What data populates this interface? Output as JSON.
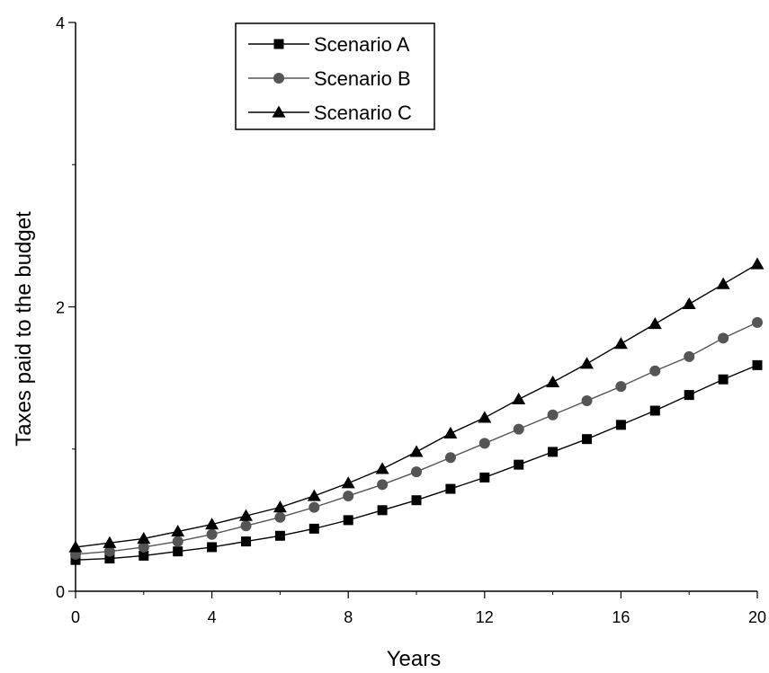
{
  "chart_data": {
    "type": "line",
    "title": "",
    "xlabel": "Years",
    "ylabel": "Taxes paid to the budget",
    "xlim": [
      0,
      20
    ],
    "ylim": [
      0,
      4
    ],
    "xticks": [
      0,
      4,
      8,
      12,
      16,
      20
    ],
    "xtick_labels": [
      "0",
      "4",
      "8",
      "12",
      "16",
      "20"
    ],
    "yticks": [
      0,
      2,
      4
    ],
    "ytick_labels": [
      "0",
      "2",
      "4"
    ],
    "grid": false,
    "legend_position": "top-left",
    "x": [
      0,
      1,
      2,
      3,
      4,
      5,
      6,
      7,
      8,
      9,
      10,
      11,
      12,
      13,
      14,
      15,
      16,
      17,
      18,
      19,
      20
    ],
    "series": [
      {
        "name": "Scenario A",
        "marker": "square",
        "color": "#000000",
        "values": [
          0.22,
          0.23,
          0.25,
          0.28,
          0.31,
          0.35,
          0.39,
          0.44,
          0.5,
          0.57,
          0.64,
          0.72,
          0.8,
          0.89,
          0.98,
          1.07,
          1.17,
          1.27,
          1.38,
          1.49,
          1.59
        ]
      },
      {
        "name": "Scenario B",
        "marker": "circle",
        "color": "#555555",
        "values": [
          0.26,
          0.28,
          0.31,
          0.35,
          0.4,
          0.46,
          0.52,
          0.59,
          0.67,
          0.75,
          0.84,
          0.94,
          1.04,
          1.14,
          1.24,
          1.34,
          1.44,
          1.55,
          1.65,
          1.78,
          1.89
        ]
      },
      {
        "name": "Scenario C",
        "marker": "triangle",
        "color": "#000000",
        "values": [
          0.31,
          0.34,
          0.37,
          0.42,
          0.47,
          0.53,
          0.59,
          0.67,
          0.76,
          0.86,
          0.98,
          1.11,
          1.22,
          1.35,
          1.47,
          1.6,
          1.74,
          1.88,
          2.02,
          2.16,
          2.3
        ]
      }
    ]
  }
}
